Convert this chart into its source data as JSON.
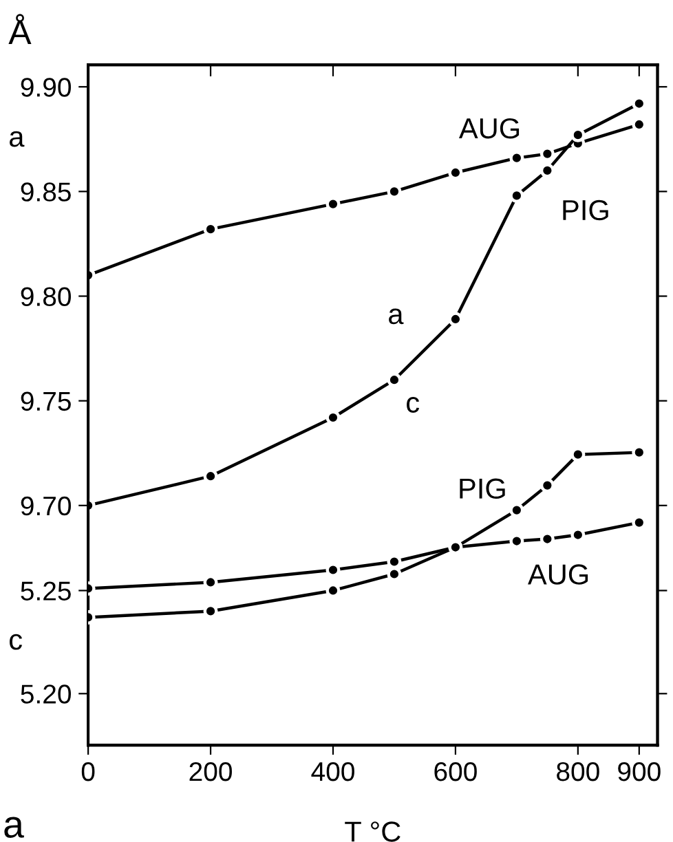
{
  "chart_data": [
    {
      "type": "line",
      "ylabel": "a",
      "xlim": [
        0,
        930
      ],
      "xticks": [
        0,
        200,
        400,
        600,
        800,
        900
      ],
      "ylim": [
        9.5855,
        9.9105
      ],
      "yticks": [
        {
          "value": 9.7,
          "label": "9.70"
        },
        {
          "value": 9.75,
          "label": "9.75"
        },
        {
          "value": 9.8,
          "label": "9.80"
        },
        {
          "value": 9.85,
          "label": "9.85"
        },
        {
          "value": 9.9,
          "label": "9.90"
        }
      ],
      "tick_labels": "y",
      "grid": false,
      "marker": "circle",
      "line_style": "solid",
      "x": [
        0,
        200,
        400,
        500,
        600,
        700,
        750,
        800,
        900
      ],
      "series": [
        {
          "name": "AUG",
          "color": "#000000",
          "values": [
            9.81,
            9.832,
            9.844,
            9.85,
            9.859,
            9.866,
            9.868,
            9.873,
            9.882
          ]
        },
        {
          "name": "PIG",
          "color": "#000000",
          "values": [
            9.7,
            9.714,
            9.742,
            9.76,
            9.789,
            9.848,
            9.86,
            9.877,
            9.892
          ]
        }
      ],
      "annotations": [
        "Å",
        "a"
      ]
    },
    {
      "type": "line",
      "ylabel": "c",
      "xlabel": "T °C",
      "xlim": [
        0,
        930
      ],
      "xticks": [
        0,
        200,
        400,
        600,
        800,
        900
      ],
      "ylim": [
        5.175,
        5.505
      ],
      "yticks": [
        {
          "value": 5.2,
          "label": "5.20"
        },
        {
          "value": 5.25,
          "label": "5.25"
        }
      ],
      "grid": false,
      "marker": "circle",
      "line_style": "solid",
      "x": [
        0,
        200,
        400,
        500,
        600,
        700,
        750,
        800,
        900
      ],
      "series": [
        {
          "name": "PIG",
          "color": "#000000",
          "values": [
            5.251,
            5.254,
            5.26,
            5.264,
            5.271,
            5.289,
            5.301,
            5.316,
            5.317
          ]
        },
        {
          "name": "AUG",
          "color": "#000000",
          "values": [
            5.237,
            5.24,
            5.25,
            5.258,
            5.271,
            5.274,
            5.275,
            5.277,
            5.283
          ]
        }
      ],
      "annotations": [
        "c",
        "a"
      ]
    }
  ]
}
